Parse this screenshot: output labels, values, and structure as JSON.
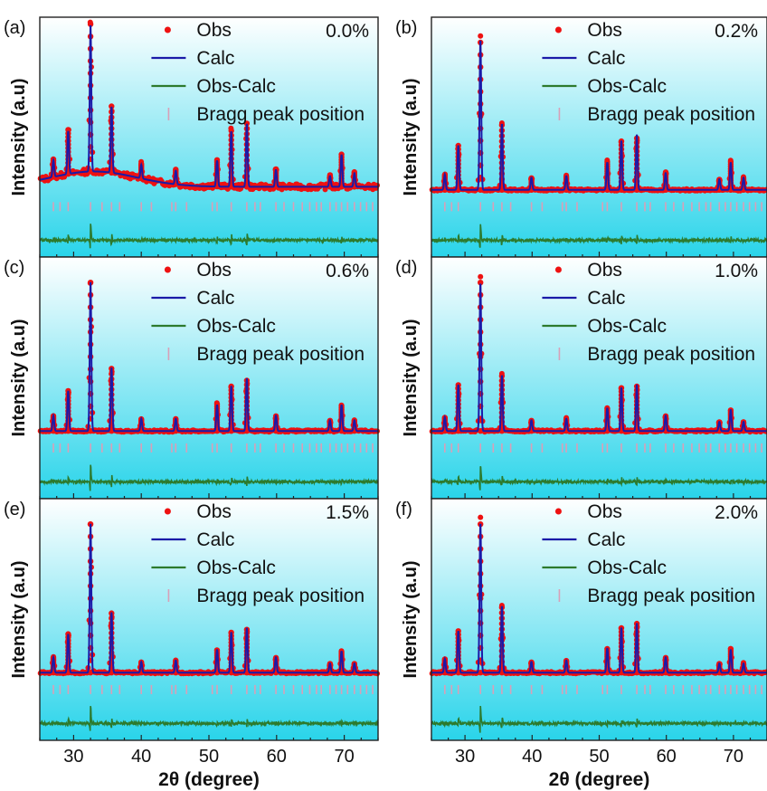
{
  "figure": {
    "xlabel": "2θ (degree)",
    "ylabel": "Intensity (a.u)",
    "x_ticks": [
      30,
      40,
      50,
      60,
      70
    ],
    "xlim": [
      25,
      75
    ],
    "legend_entries": [
      "Obs",
      "Calc",
      "Obs-Calc",
      "Bragg peak position"
    ],
    "colors": {
      "obs": "#ee1111",
      "calc": "#1a1aa8",
      "diff": "#2d7a2d",
      "bragg": "#d8a0b8",
      "bg_top": "#ffffff",
      "bg_bottom": "#29d4ea"
    }
  },
  "chart_data": [
    {
      "type": "line",
      "panel_label": "(a)",
      "doping": "0.0%",
      "xlim": [
        25,
        75
      ],
      "series": [
        {
          "name": "Obs",
          "x": [
            27.0,
            29.2,
            32.5,
            35.6,
            40.0,
            45.1,
            51.2,
            53.3,
            55.6,
            59.9,
            67.9,
            69.6,
            71.5
          ],
          "y": [
            12,
            30,
            100,
            45,
            10,
            10,
            18,
            38,
            43,
            12,
            8,
            22,
            10
          ]
        },
        {
          "name": "Calc",
          "x": [
            27.0,
            29.2,
            32.5,
            35.6,
            40.0,
            45.1,
            51.2,
            53.3,
            55.6,
            59.9,
            67.9,
            69.6,
            71.5
          ],
          "y": [
            11,
            28,
            96,
            43,
            9,
            9,
            17,
            36,
            41,
            11,
            7,
            21,
            9
          ]
        },
        {
          "name": "Obs-Calc"
        },
        {
          "name": "Bragg peak position",
          "x": [
            27.0,
            29.2,
            32.5,
            35.6,
            40.0,
            45.1,
            51.2,
            53.3,
            55.6,
            59.9,
            67.9,
            69.6,
            71.5
          ]
        }
      ]
    },
    {
      "type": "line",
      "panel_label": "(b)",
      "doping": "0.2%",
      "xlim": [
        25,
        75
      ],
      "series": [
        {
          "name": "Obs",
          "x": [
            27.0,
            29.0,
            32.3,
            35.5,
            39.9,
            45.1,
            51.2,
            53.3,
            55.6,
            59.9,
            67.9,
            69.6,
            71.5
          ],
          "y": [
            10,
            30,
            100,
            44,
            8,
            9,
            19,
            33,
            35,
            12,
            7,
            19,
            8
          ]
        },
        {
          "name": "Calc",
          "x": [
            27.0,
            29.0,
            32.3,
            35.5,
            39.9,
            45.1,
            51.2,
            53.3,
            55.6,
            59.9,
            67.9,
            69.6,
            71.5
          ],
          "y": [
            10,
            29,
            98,
            43,
            8,
            9,
            18,
            32,
            36,
            11,
            7,
            18,
            8
          ]
        },
        {
          "name": "Obs-Calc"
        },
        {
          "name": "Bragg peak position",
          "x": [
            27.0,
            29.0,
            32.3,
            35.5,
            39.9,
            45.1,
            51.2,
            53.3,
            55.6,
            59.9,
            67.9,
            69.6,
            71.5
          ]
        }
      ]
    },
    {
      "type": "line",
      "panel_label": "(c)",
      "doping": "0.6%",
      "xlim": [
        25,
        75
      ],
      "series": [
        {
          "name": "Obs",
          "x": [
            27.0,
            29.2,
            32.5,
            35.6,
            40.0,
            45.1,
            51.2,
            53.3,
            55.6,
            59.9,
            67.9,
            69.6,
            71.5
          ],
          "y": [
            10,
            27,
            100,
            42,
            8,
            8,
            18,
            30,
            34,
            10,
            7,
            17,
            7
          ]
        },
        {
          "name": "Calc",
          "x": [
            27.0,
            29.2,
            32.5,
            35.6,
            40.0,
            45.1,
            51.2,
            53.3,
            55.6,
            59.9,
            67.9,
            69.6,
            71.5
          ],
          "y": [
            10,
            26,
            97,
            41,
            8,
            8,
            17,
            29,
            34,
            10,
            7,
            17,
            7
          ]
        },
        {
          "name": "Obs-Calc"
        },
        {
          "name": "Bragg peak position",
          "x": [
            27.0,
            29.2,
            32.5,
            35.6,
            40.0,
            45.1,
            51.2,
            53.3,
            55.6,
            59.9,
            67.9,
            69.6,
            71.5
          ]
        }
      ]
    },
    {
      "type": "line",
      "panel_label": "(d)",
      "doping": "1.0%",
      "xlim": [
        25,
        75
      ],
      "series": [
        {
          "name": "Obs",
          "x": [
            27.0,
            29.0,
            32.3,
            35.5,
            39.9,
            45.1,
            51.2,
            53.3,
            55.6,
            59.9,
            67.9,
            69.6,
            71.5
          ],
          "y": [
            9,
            31,
            100,
            37,
            7,
            8,
            15,
            29,
            30,
            10,
            6,
            14,
            6
          ]
        },
        {
          "name": "Calc",
          "x": [
            27.0,
            29.0,
            32.3,
            35.5,
            39.9,
            45.1,
            51.2,
            53.3,
            55.6,
            59.9,
            67.9,
            69.6,
            71.5
          ],
          "y": [
            9,
            30,
            96,
            36,
            7,
            8,
            15,
            28,
            30,
            10,
            6,
            14,
            6
          ]
        },
        {
          "name": "Obs-Calc"
        },
        {
          "name": "Bragg peak position",
          "x": [
            27.0,
            29.0,
            32.3,
            35.5,
            39.9,
            45.1,
            51.2,
            53.3,
            55.6,
            59.9,
            67.9,
            69.6,
            71.5
          ]
        }
      ]
    },
    {
      "type": "line",
      "panel_label": "(e)",
      "doping": "1.5%",
      "xlim": [
        25,
        75
      ],
      "series": [
        {
          "name": "Obs",
          "x": [
            27.0,
            29.2,
            32.5,
            35.6,
            40.0,
            45.1,
            51.2,
            53.3,
            55.6,
            59.9,
            67.9,
            69.6,
            71.5
          ],
          "y": [
            10,
            26,
            100,
            40,
            7,
            8,
            15,
            27,
            29,
            10,
            6,
            14,
            6
          ]
        },
        {
          "name": "Calc",
          "x": [
            27.0,
            29.2,
            32.5,
            35.6,
            40.0,
            45.1,
            51.2,
            53.3,
            55.6,
            59.9,
            67.9,
            69.6,
            71.5
          ],
          "y": [
            10,
            25,
            97,
            39,
            7,
            8,
            15,
            26,
            29,
            10,
            6,
            14,
            6
          ]
        },
        {
          "name": "Obs-Calc"
        },
        {
          "name": "Bragg peak position",
          "x": [
            27.0,
            29.2,
            32.5,
            35.6,
            40.0,
            45.1,
            51.2,
            53.3,
            55.6,
            59.9,
            67.9,
            69.6,
            71.5
          ]
        }
      ]
    },
    {
      "type": "line",
      "panel_label": "(f)",
      "doping": "2.0%",
      "xlim": [
        25,
        75
      ],
      "series": [
        {
          "name": "Obs",
          "x": [
            27.0,
            29.0,
            32.3,
            35.5,
            39.9,
            45.1,
            51.2,
            53.3,
            55.6,
            59.9,
            67.9,
            69.6,
            71.5
          ],
          "y": [
            9,
            28,
            100,
            44,
            7,
            8,
            16,
            30,
            33,
            10,
            6,
            16,
            6
          ]
        },
        {
          "name": "Calc",
          "x": [
            27.0,
            29.0,
            32.3,
            35.5,
            39.9,
            45.1,
            51.2,
            53.3,
            55.6,
            59.9,
            67.9,
            69.6,
            71.5
          ],
          "y": [
            9,
            27,
            97,
            43,
            7,
            8,
            16,
            29,
            32,
            10,
            6,
            15,
            6
          ]
        },
        {
          "name": "Obs-Calc"
        },
        {
          "name": "Bragg peak position",
          "x": [
            27.0,
            29.0,
            32.3,
            35.5,
            39.9,
            45.1,
            51.2,
            53.3,
            55.6,
            59.9,
            67.9,
            69.6,
            71.5
          ]
        }
      ]
    }
  ]
}
